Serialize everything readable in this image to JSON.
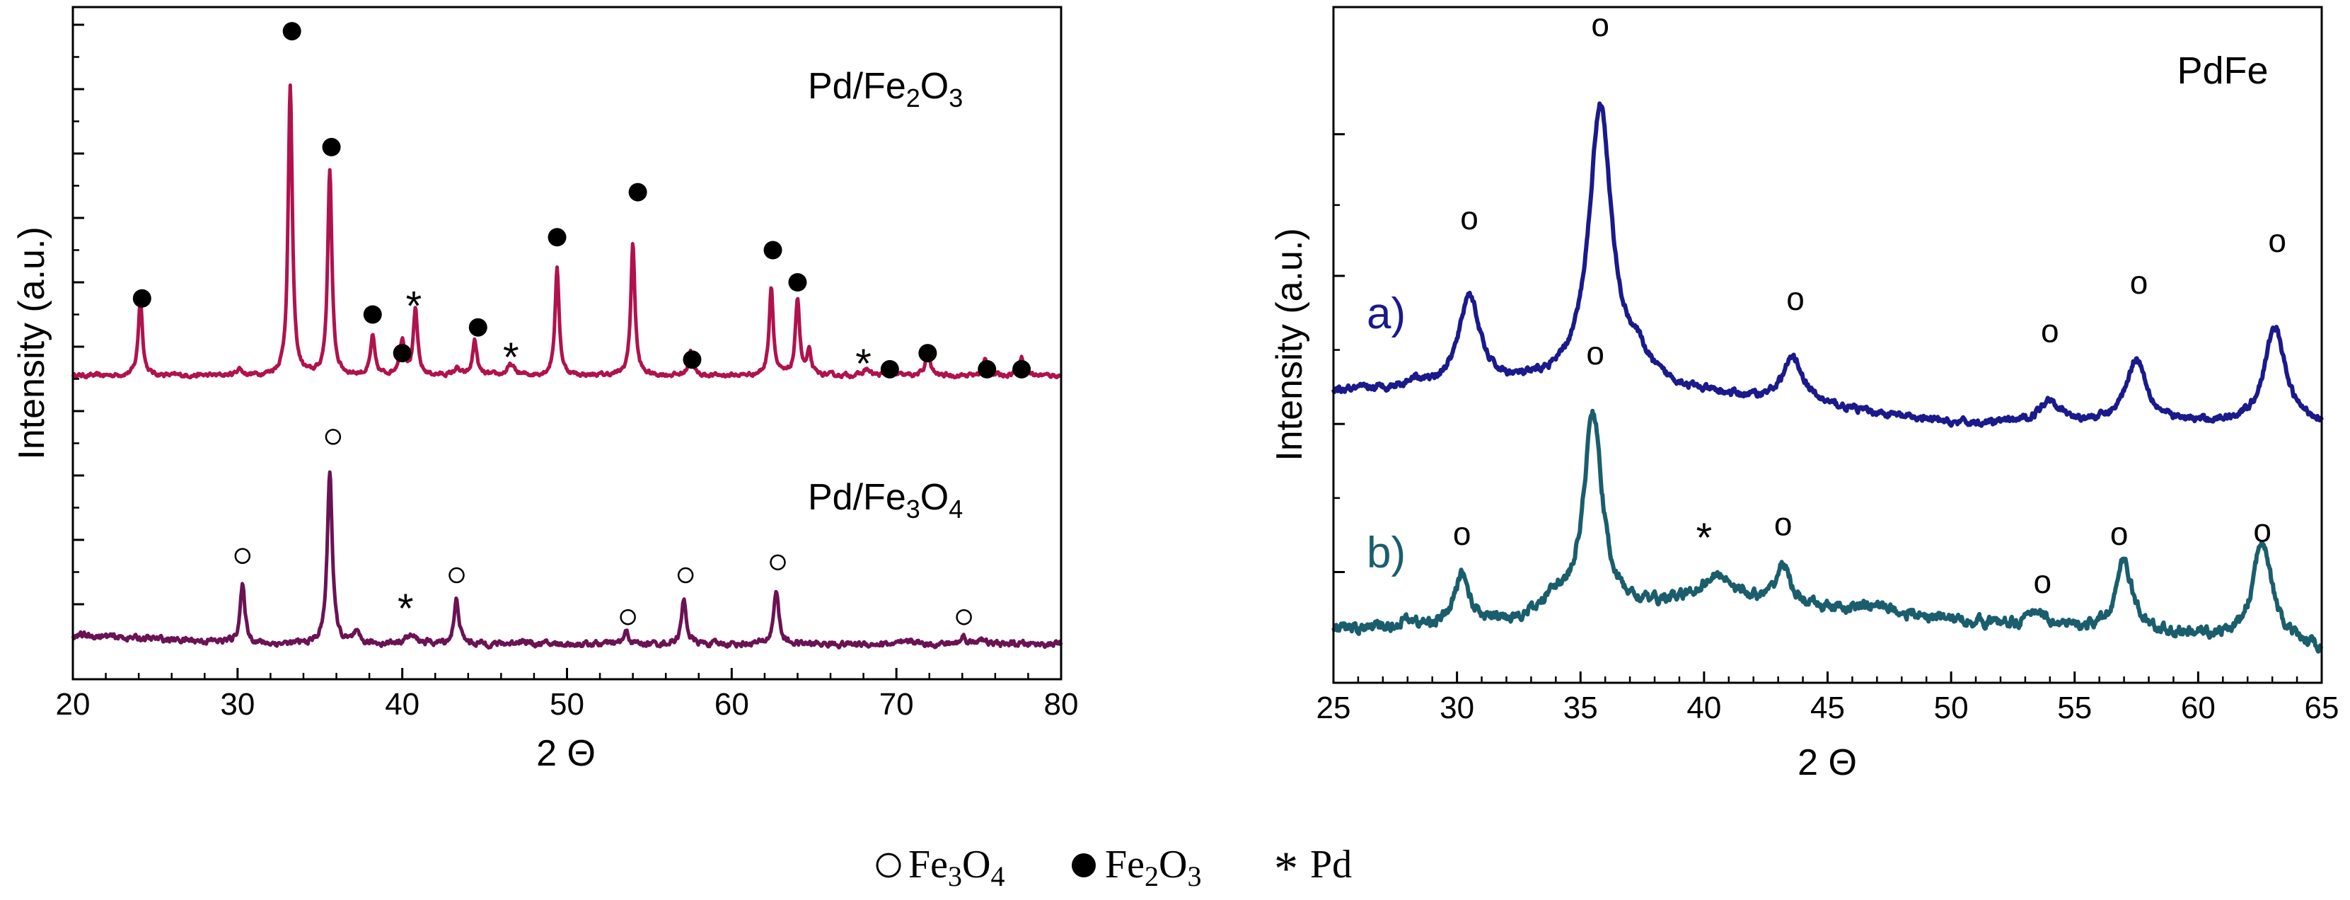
{
  "chart_data": [
    {
      "type": "line",
      "panel": "left",
      "xlabel": "2 Θ",
      "ylabel": "Intensity (a.u.)",
      "xlim": [
        20,
        80
      ],
      "ylim": [
        0,
        100
      ],
      "x_ticks": [
        20,
        30,
        40,
        50,
        60,
        70,
        80
      ],
      "x_tick_labels": [
        "20",
        "30",
        "40",
        "50",
        "60",
        "70",
        "80"
      ],
      "y_ticks_note": "unlabeled major ticks",
      "y_major_ticks": [
        10,
        20,
        30,
        40,
        50,
        60,
        70,
        80,
        90,
        100
      ],
      "series": [
        {
          "name": "Pd/Fe2O3",
          "label_base": "Pd/Fe",
          "label_sub1": "2",
          "label_mid": "O",
          "label_sub2": "3",
          "color": "#B0124E",
          "baseline": 45.5,
          "noise": 0.25,
          "peaks": [
            {
              "x": 24.1,
              "h": 12,
              "w": 0.15
            },
            {
              "x": 30.1,
              "h": 1,
              "w": 0.2
            },
            {
              "x": 33.2,
              "h": 45,
              "w": 0.15
            },
            {
              "x": 35.6,
              "h": 32,
              "w": 0.15
            },
            {
              "x": 38.2,
              "h": 6,
              "w": 0.15
            },
            {
              "x": 40.0,
              "h": 5.5,
              "w": 0.2
            },
            {
              "x": 40.8,
              "h": 10,
              "w": 0.15
            },
            {
              "x": 43.3,
              "h": 1,
              "w": 0.2
            },
            {
              "x": 44.4,
              "h": 5.5,
              "w": 0.15
            },
            {
              "x": 46.6,
              "h": 1.6,
              "w": 0.25
            },
            {
              "x": 49.4,
              "h": 16.5,
              "w": 0.15
            },
            {
              "x": 54.0,
              "h": 20.5,
              "w": 0.15
            },
            {
              "x": 57.5,
              "h": 3.8,
              "w": 0.15
            },
            {
              "x": 62.4,
              "h": 13.8,
              "w": 0.15
            },
            {
              "x": 64.0,
              "h": 12,
              "w": 0.15
            },
            {
              "x": 64.7,
              "h": 3.5,
              "w": 0.15
            },
            {
              "x": 68.2,
              "h": 1,
              "w": 0.2
            },
            {
              "x": 69.6,
              "h": 1.3,
              "w": 0.15
            },
            {
              "x": 71.9,
              "h": 4.2,
              "w": 0.15
            },
            {
              "x": 75.4,
              "h": 2.5,
              "w": 0.15
            },
            {
              "x": 77.6,
              "h": 3,
              "w": 0.2
            }
          ]
        },
        {
          "name": "Pd/Fe3O4",
          "label_base": "Pd/Fe",
          "label_sub1": "3",
          "label_mid": "O",
          "label_sub2": "4",
          "color": "#6B1255",
          "baseline": 3.8,
          "baseline_start": 5.2,
          "noise": 0.35,
          "peaks": [
            {
              "x": 30.3,
              "h": 8.8,
              "w": 0.18
            },
            {
              "x": 35.6,
              "h": 27,
              "w": 0.18
            },
            {
              "x": 37.2,
              "h": 1.5,
              "w": 0.2
            },
            {
              "x": 40.5,
              "h": 1.2,
              "w": 0.5
            },
            {
              "x": 43.3,
              "h": 6.8,
              "w": 0.18
            },
            {
              "x": 47.2,
              "h": 0.6,
              "w": 0.3
            },
            {
              "x": 53.6,
              "h": 1.8,
              "w": 0.18
            },
            {
              "x": 57.1,
              "h": 6.8,
              "w": 0.18
            },
            {
              "x": 62.7,
              "h": 8.5,
              "w": 0.18
            },
            {
              "x": 71.0,
              "h": 0.5,
              "w": 0.3
            },
            {
              "x": 74.1,
              "h": 1.3,
              "w": 0.18
            },
            {
              "x": 75.1,
              "h": 1.0,
              "w": 0.18
            }
          ]
        }
      ],
      "annotations": [
        {
          "symbol": "filled_circle",
          "x": 24.2,
          "y": 57.5
        },
        {
          "symbol": "filled_circle",
          "x": 33.3,
          "y": 99
        },
        {
          "symbol": "filled_circle",
          "x": 35.7,
          "y": 81
        },
        {
          "symbol": "filled_circle",
          "x": 38.2,
          "y": 55
        },
        {
          "symbol": "filled_circle",
          "x": 40.0,
          "y": 49
        },
        {
          "symbol": "asterisk",
          "x": 40.7,
          "y": 57
        },
        {
          "symbol": "filled_circle",
          "x": 44.6,
          "y": 53
        },
        {
          "symbol": "asterisk",
          "x": 46.6,
          "y": 49
        },
        {
          "symbol": "filled_circle",
          "x": 49.4,
          "y": 67
        },
        {
          "symbol": "filled_circle",
          "x": 54.3,
          "y": 74
        },
        {
          "symbol": "filled_circle",
          "x": 57.6,
          "y": 48
        },
        {
          "symbol": "filled_circle",
          "x": 62.5,
          "y": 65
        },
        {
          "symbol": "filled_circle",
          "x": 64.0,
          "y": 60
        },
        {
          "symbol": "asterisk",
          "x": 68.0,
          "y": 48
        },
        {
          "symbol": "filled_circle",
          "x": 69.6,
          "y": 46.5
        },
        {
          "symbol": "filled_circle",
          "x": 71.9,
          "y": 49
        },
        {
          "symbol": "filled_circle",
          "x": 75.5,
          "y": 46.5
        },
        {
          "symbol": "filled_circle",
          "x": 77.6,
          "y": 46.5
        },
        {
          "symbol": "open_circle",
          "x": 30.3,
          "y": 17.5
        },
        {
          "symbol": "open_circle",
          "x": 35.8,
          "y": 36
        },
        {
          "symbol": "asterisk",
          "x": 40.2,
          "y": 10
        },
        {
          "symbol": "open_circle",
          "x": 43.3,
          "y": 14.5
        },
        {
          "symbol": "open_circle",
          "x": 53.7,
          "y": 8
        },
        {
          "symbol": "open_circle",
          "x": 57.2,
          "y": 14.5
        },
        {
          "symbol": "open_circle",
          "x": 62.8,
          "y": 16.5
        },
        {
          "symbol": "open_circle",
          "x": 74.1,
          "y": 8
        }
      ]
    },
    {
      "type": "line",
      "panel": "right",
      "title": "PdFe",
      "xlabel": "2 Θ",
      "ylabel": "Intensity (a.u.)",
      "xlim": [
        25,
        65
      ],
      "ylim": [
        0,
        100
      ],
      "x_ticks": [
        25,
        30,
        35,
        40,
        45,
        50,
        55,
        60,
        65
      ],
      "x_tick_labels": [
        "25",
        "30",
        "35",
        "40",
        "45",
        "50",
        "55",
        "60",
        "65"
      ],
      "y_major_ticks": [
        15,
        38,
        61,
        83
      ],
      "series": [
        {
          "name": "a)",
          "color": "#1A1A8C",
          "baseline_points": [
            [
              25,
              43
            ],
            [
              28,
              43.5
            ],
            [
              33,
              44
            ],
            [
              37,
              44.5
            ],
            [
              40,
              42.5
            ],
            [
              45,
              40.5
            ],
            [
              50,
              38
            ],
            [
              55,
              38
            ],
            [
              60,
              38
            ],
            [
              65,
              38
            ]
          ],
          "noise": 0.4,
          "peaks": [
            {
              "x": 28.3,
              "h": 1.2,
              "w": 0.25
            },
            {
              "x": 30.5,
              "h": 14,
              "w": 0.5
            },
            {
              "x": 35.8,
              "h": 43,
              "w": 0.55
            },
            {
              "x": 37.3,
              "h": 3,
              "w": 0.5
            },
            {
              "x": 43.6,
              "h": 7,
              "w": 0.5
            },
            {
              "x": 54.0,
              "h": 3.6,
              "w": 0.5
            },
            {
              "x": 57.5,
              "h": 10,
              "w": 0.5
            },
            {
              "x": 63.1,
              "h": 15,
              "w": 0.5
            }
          ]
        },
        {
          "name": "b)",
          "color": "#1A5E6E",
          "baseline_points": [
            [
              25,
              6
            ],
            [
              30,
              6.5
            ],
            [
              33,
              7.5
            ],
            [
              35,
              8.5
            ],
            [
              40,
              10
            ],
            [
              45,
              9
            ],
            [
              50,
              7.5
            ],
            [
              55,
              6
            ],
            [
              60,
              5
            ],
            [
              63,
              4
            ],
            [
              65,
              3
            ]
          ],
          "noise": 0.6,
          "peaks": [
            {
              "x": 28.0,
              "h": 1.2,
              "w": 0.3
            },
            {
              "x": 30.2,
              "h": 8,
              "w": 0.35
            },
            {
              "x": 33.9,
              "h": 3,
              "w": 0.4
            },
            {
              "x": 35.5,
              "h": 31,
              "w": 0.45
            },
            {
              "x": 40.6,
              "h": 4.2,
              "w": 0.9
            },
            {
              "x": 43.2,
              "h": 6.3,
              "w": 0.35
            },
            {
              "x": 47.0,
              "h": 1.3,
              "w": 0.8
            },
            {
              "x": 53.5,
              "h": 2.5,
              "w": 0.4
            },
            {
              "x": 57.0,
              "h": 11,
              "w": 0.4
            },
            {
              "x": 62.6,
              "h": 16,
              "w": 0.45
            }
          ]
        }
      ],
      "annotations": [
        {
          "symbol": "letter_o",
          "x": 35.8,
          "y": 100
        },
        {
          "symbol": "letter_o",
          "x": 30.5,
          "y": 70
        },
        {
          "symbol": "letter_o",
          "x": 43.7,
          "y": 57.5
        },
        {
          "symbol": "letter_o",
          "x": 54.0,
          "y": 52.5
        },
        {
          "symbol": "letter_o",
          "x": 57.6,
          "y": 60
        },
        {
          "symbol": "letter_o",
          "x": 63.2,
          "y": 66.5
        },
        {
          "symbol": "letter_o",
          "x": 35.6,
          "y": 49
        },
        {
          "symbol": "letter_o",
          "x": 30.2,
          "y": 21
        },
        {
          "symbol": "asterisk",
          "x": 40.0,
          "y": 21
        },
        {
          "symbol": "letter_o",
          "x": 43.2,
          "y": 22.5
        },
        {
          "symbol": "letter_o",
          "x": 53.7,
          "y": 13.5
        },
        {
          "symbol": "letter_o",
          "x": 56.8,
          "y": 21
        },
        {
          "symbol": "letter_o",
          "x": 62.6,
          "y": 21.5
        }
      ],
      "series_labels": [
        {
          "text": "a)",
          "series": 0
        },
        {
          "text": "b)",
          "series": 1
        }
      ]
    }
  ],
  "legend": {
    "items": [
      {
        "symbol": "open_circle",
        "text_base": "Fe",
        "sub1": "3",
        "mid": "O",
        "sub2": "4"
      },
      {
        "symbol": "filled_circle",
        "text_base": "Fe",
        "sub1": "2",
        "mid": "O",
        "sub2": "3"
      },
      {
        "symbol": "asterisk",
        "text": "Pd"
      }
    ]
  }
}
